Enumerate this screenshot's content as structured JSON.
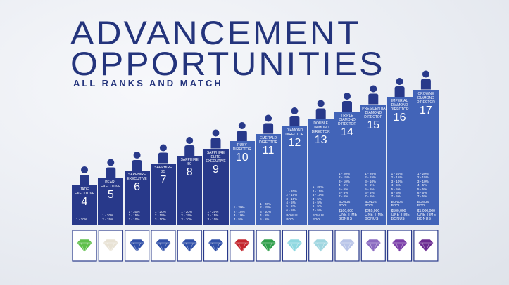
{
  "header": {
    "title_line_1": "ADVANCEMENT",
    "title_line_2": "OPPORTUNITIES",
    "subtitle": "ALL RANKS AND MATCH"
  },
  "ranks": [
    {
      "name": "JADE EXECUTIVE",
      "number": "4",
      "levels": [
        "1 - 20%"
      ],
      "gem_color": "#5fbf4a"
    },
    {
      "name": "PEARL EXECUTIVE",
      "number": "5",
      "levels": [
        "1 - 20%",
        "2 - 15%"
      ],
      "gem_color": "#e8e2d4"
    },
    {
      "name": "SAPPHIRE EXECUTIVE",
      "number": "6",
      "levels": [
        "1 - 20%",
        "2 - 15%",
        "3 - 10%"
      ],
      "gem_color": "#2f4fa8"
    },
    {
      "name": "SAPPHIRE 25",
      "number": "7",
      "levels": [
        "1 - 20%",
        "2 - 15%",
        "3 - 10%"
      ],
      "gem_color": "#2f4fa8"
    },
    {
      "name": "SAPPHIRE 50",
      "number": "8",
      "levels": [
        "1 - 20%",
        "2 - 15%",
        "3 - 10%"
      ],
      "gem_color": "#2f4fa8"
    },
    {
      "name": "SAPPHIRE ELITE EXECUTIVE",
      "number": "9",
      "levels": [
        "1 - 20%",
        "2 - 15%",
        "3 - 10%"
      ],
      "gem_color": "#2f4fa8"
    },
    {
      "name": "RUBY DIRECTOR",
      "number": "10",
      "levels": [
        "1 - 20%",
        "2 - 15%",
        "3 - 10%",
        "4 - 5%"
      ],
      "gem_color": "#c4262e"
    },
    {
      "name": "EMERALD DIRECTOR",
      "number": "11",
      "levels": [
        "1 - 20%",
        "2 - 15%",
        "3 - 10%",
        "4 - 5%",
        "5 - 5%"
      ],
      "gem_color": "#2f9e4a"
    },
    {
      "name": "DIAMOND DIRECTOR",
      "number": "12",
      "levels": [
        "1 - 20%",
        "2 - 15%",
        "3 - 10%",
        "4 - 5%",
        "5 - 5%",
        "6 - 5%"
      ],
      "bonus_pool": "BONUS POOL",
      "gem_color": "#8fd8e0"
    },
    {
      "name": "DOUBLE DIAMOND DIRECTOR",
      "number": "13",
      "levels": [
        "1 - 20%",
        "2 - 15%",
        "3 - 10%",
        "4 - 5%",
        "5 - 5%",
        "6 - 5%",
        "7 - 5%"
      ],
      "bonus_pool": "BONUS POOL",
      "gem_color": "#9fd6e0"
    },
    {
      "name": "TRIPLE DIAMOND DIRECTOR",
      "number": "14",
      "levels": [
        "1 - 20%",
        "2 - 15%",
        "3 - 10%",
        "4 - 5%",
        "5 - 5%",
        "6 - 5%",
        "7 - 5%"
      ],
      "bonus_pool": "BONUS POOL",
      "bonus_amount": "$100,000",
      "bonus_label": "ONE TIME BONUS",
      "gem_color": "#b8c4e8"
    },
    {
      "name": "PRESIDENTIAL DIAMOND DIRECTOR",
      "number": "15",
      "levels": [
        "1 - 20%",
        "2 - 15%",
        "3 - 10%",
        "4 - 5%",
        "5 - 5%",
        "6 - 5%",
        "7 - 5%"
      ],
      "bonus_pool": "BONUS POOL",
      "bonus_amount": "$250,000",
      "bonus_label": "ONE TIME BONUS",
      "gem_color": "#8a6ac0"
    },
    {
      "name": "IMPERIAL DIAMOND DIRECTOR",
      "number": "16",
      "levels": [
        "1 - 20%",
        "2 - 15%",
        "3 - 10%",
        "4 - 5%",
        "5 - 5%",
        "6 - 5%",
        "7 - 5%"
      ],
      "bonus_pool": "BONUS POOL",
      "bonus_amount": "$500,000",
      "bonus_label": "ONE TIME BONUS",
      "gem_color": "#7a3ea8"
    },
    {
      "name": "CROWNE DIAMOND DIRECTOR",
      "number": "17",
      "levels": [
        "1 - 20%",
        "2 - 15%",
        "3 - 10%",
        "4 - 5%",
        "5 - 5%",
        "6 - 5%",
        "7 - 5%"
      ],
      "bonus_pool": "BONUS POOL",
      "bonus_amount": "$1,000,000",
      "bonus_label": "ONE TIME BONUS",
      "gem_color": "#6a2a90"
    }
  ]
}
